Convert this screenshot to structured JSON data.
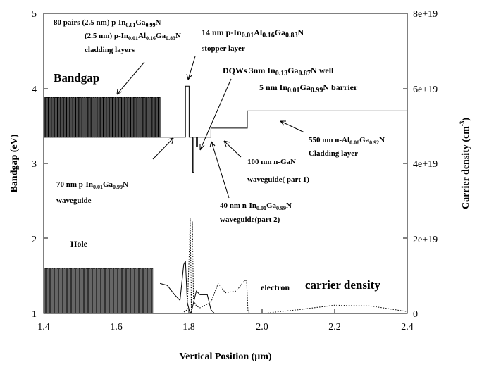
{
  "chart_data": {
    "type": "line",
    "xlabel": "Vertical Position (μm)",
    "ylabel": "Bandgap (eV)",
    "y2label": "Carrier density (cm-3)",
    "xlim": [
      1.4,
      2.4
    ],
    "ylim": [
      1,
      5
    ],
    "y2lim": [
      0,
      8e+19
    ],
    "x_ticks": [
      "1.4",
      "1.6",
      "1.8",
      "2.0",
      "2.2",
      "2.4"
    ],
    "y_ticks": [
      "1",
      "2",
      "3",
      "4",
      "5"
    ],
    "y2_ticks": [
      "0",
      "2e+19",
      "4e+19",
      "6e+19",
      "8e+19"
    ],
    "grid": false,
    "series": [
      {
        "axis": "left",
        "style": "solid",
        "x": [
          1.4,
          1.72,
          1.72,
          1.79,
          1.79,
          1.8,
          1.8,
          1.81,
          1.81,
          1.813,
          1.813,
          1.82,
          1.82,
          1.823,
          1.823,
          1.83,
          1.83,
          1.86,
          1.86,
          1.96,
          1.96,
          2.4
        ],
        "y": [
          3.35,
          3.35,
          3.35,
          3.35,
          4.03,
          4.03,
          3.35,
          3.35,
          2.88,
          2.88,
          3.35,
          3.35,
          3.23,
          3.23,
          3.35,
          3.35,
          3.35,
          3.35,
          3.47,
          3.47,
          3.7,
          3.7
        ],
        "superlattice": {
          "x_range": [
            1.4,
            1.72
          ],
          "low": 3.35,
          "high": 3.88
        }
      },
      {
        "axis": "right",
        "style": "solid",
        "x": [
          1.72,
          1.74,
          1.76,
          1.775,
          1.785,
          1.79,
          1.795,
          1.8,
          1.805,
          1.81,
          1.815,
          1.82,
          1.83,
          1.85,
          1.86,
          1.87,
          2.4
        ],
        "y": [
          8e+18,
          7.5e+18,
          5e+18,
          3.5e+18,
          1.3e+19,
          1.4e+19,
          3e+18,
          1e+18,
          0.0,
          2e+18,
          4e+18,
          6e+18,
          5e+18,
          5e+18,
          1e+18,
          0.0,
          0.0
        ],
        "superlattice": {
          "x_range": [
            1.4,
            1.7
          ],
          "low": 0.0,
          "high": 1.2e+19
        }
      },
      {
        "axis": "right",
        "style": "dotted",
        "x": [
          1.78,
          1.795,
          1.8,
          1.803,
          1.806,
          1.809,
          1.812,
          1.815,
          1.82,
          1.83,
          1.84,
          1.86,
          1.88,
          1.9,
          1.93,
          1.95,
          1.958,
          1.962,
          1.97,
          2.0,
          2.1,
          2.2,
          2.3,
          2.4
        ],
        "y": [
          0.0,
          1e+18,
          1.5e+19,
          2.55e+19,
          1e+18,
          2.45e+19,
          4e+18,
          3e+18,
          2e+18,
          1.5e+18,
          2e+18,
          3e+18,
          8e+18,
          5.5e+18,
          6e+18,
          8.5e+18,
          9e+18,
          5e+17,
          0.0,
          0.0,
          1e+18,
          2.2e+18,
          2e+18,
          5e+17
        ]
      }
    ],
    "annotations": {
      "sl": {
        "l1": "80 pairs (2.5 nm) p-In",
        "s1": "0.01",
        "l2": "Ga",
        "s2": "0.99",
        "l3": "N"
      },
      "sl2": {
        "l1": "(2.5 nm) p-In",
        "s1": "0.01",
        "l2": "Al",
        "s2": "0.16",
        "l3": "Ga",
        "s3": "0.83",
        "l4": "N"
      },
      "clad": "cladding layers",
      "stop": {
        "l1": "14 nm p-In",
        "s1": "0.01",
        "l2": "Al",
        "s2": "0.16",
        "l3": "Ga",
        "s3": "0.83",
        "l4": "N"
      },
      "stop2": "stopper layer",
      "dqw": {
        "l1": "DQWs 3nm In",
        "s1": "0.13",
        "l2": "Ga",
        "s2": "0.87",
        "l3": "N well"
      },
      "bar": {
        "l1": "5 nm In",
        "s1": "0.01",
        "l2": "Ga",
        "s2": "0.99",
        "l3": "N barrier"
      },
      "bandgap": "Bandgap",
      "nclad": {
        "l1": "550 nm n-Al",
        "s1": "0.08",
        "l2": "Ga",
        "s2": "0.92",
        "l3": "N"
      },
      "nclad2": "Cladding layer",
      "ngan": "100 nm n-GaN",
      "ngan2": "waveguide( part 1)",
      "pwg": {
        "l1": "70 nm p-In",
        "s1": "0.01",
        "l2": "Ga",
        "s2": "0.99",
        "l3": "N"
      },
      "pwg2": "waveguide",
      "nwg": {
        "l1": "40 nm n-In",
        "s1": "0.01",
        "l2": "Ga",
        "s2": "0.99",
        "l3": "N"
      },
      "nwg2": "waveguide(part 2)",
      "hole": "Hole",
      "electron": "electron",
      "carrier": "carrier density"
    }
  }
}
